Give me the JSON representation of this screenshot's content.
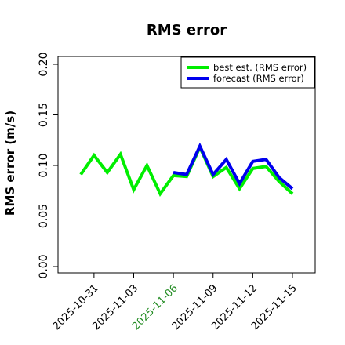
{
  "chart_data": {
    "type": "line",
    "title": "RMS error",
    "xlabel": "",
    "ylabel": "RMS error (m/s)",
    "ylim": [
      0,
      0.2
    ],
    "yticks": [
      "0.00",
      "0.05",
      "0.10",
      "0.15",
      "0.20"
    ],
    "x": [
      "2025-10-30",
      "2025-10-31",
      "2025-11-01",
      "2025-11-02",
      "2025-11-03",
      "2025-11-04",
      "2025-11-05",
      "2025-11-06",
      "2025-11-07",
      "2025-11-08",
      "2025-11-09",
      "2025-11-10",
      "2025-11-11",
      "2025-11-12",
      "2025-11-13",
      "2025-11-14",
      "2025-11-15"
    ],
    "xticks": [
      "2025-10-31",
      "2025-11-03",
      "2025-11-06",
      "2025-11-09",
      "2025-11-12",
      "2025-11-15"
    ],
    "highlighted_xtick": "2025-11-06",
    "highlight_color": "#228B22",
    "grid": false,
    "legend_position": "top-right",
    "series": [
      {
        "name": "best est. (RMS error)",
        "color": "#00ee00",
        "x": [
          "2025-10-30",
          "2025-10-31",
          "2025-11-01",
          "2025-11-02",
          "2025-11-03",
          "2025-11-04",
          "2025-11-05",
          "2025-11-06",
          "2025-11-07",
          "2025-11-08",
          "2025-11-09",
          "2025-11-10",
          "2025-11-11",
          "2025-11-12",
          "2025-11-13",
          "2025-11-14",
          "2025-11-15"
        ],
        "values": [
          0.091,
          0.11,
          0.093,
          0.111,
          0.076,
          0.1,
          0.072,
          0.09,
          0.089,
          0.118,
          0.089,
          0.098,
          0.077,
          0.097,
          0.099,
          0.084,
          0.072
        ]
      },
      {
        "name": "forecast (RMS error)",
        "color": "#0000ee",
        "x": [
          "2025-11-06",
          "2025-11-07",
          "2025-11-08",
          "2025-11-09",
          "2025-11-10",
          "2025-11-11",
          "2025-11-12",
          "2025-11-13",
          "2025-11-14",
          "2025-11-15"
        ],
        "values": [
          0.093,
          0.091,
          0.119,
          0.091,
          0.106,
          0.082,
          0.104,
          0.106,
          0.088,
          0.077
        ]
      }
    ]
  }
}
